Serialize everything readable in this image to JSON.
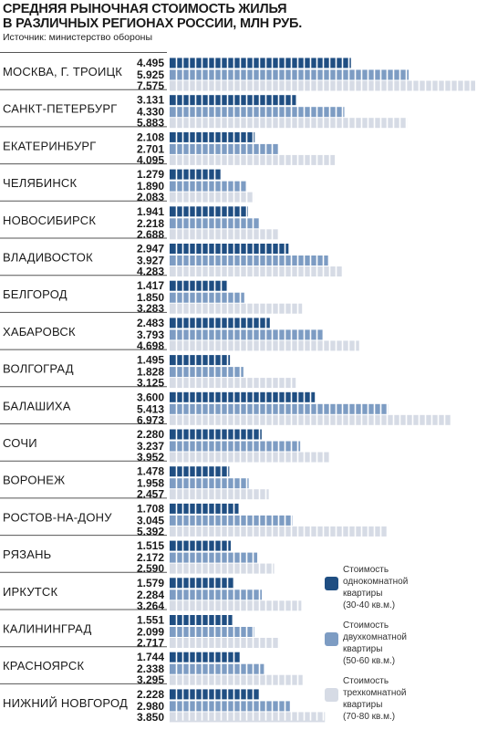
{
  "title_lines": [
    "СРЕДНЯЯ РЫНОЧНАЯ СТОИМОСТЬ ЖИЛЬЯ",
    "В РАЗЛИЧНЫХ РЕГИОНАХ РОССИИ, МЛН РУБ."
  ],
  "source": "Источник: министерство обороны",
  "colors": {
    "one_room": "#1f4e82",
    "two_room": "#7d9cc3",
    "three_room": "#d6dbe5"
  },
  "legend": [
    {
      "lines": [
        "Стоимость",
        "однокомнатной",
        "квартиры",
        "(30-40 кв.м.)"
      ]
    },
    {
      "lines": [
        "Стоимость",
        "двухкомнатной",
        "квартиры",
        "(50-60 кв.м.)"
      ]
    },
    {
      "lines": [
        "Стоимость",
        "трехкомнатной",
        "квартиры",
        "(70-80 кв.м.)"
      ]
    }
  ],
  "chart_data": {
    "type": "bar",
    "orientation": "horizontal",
    "title": "СРЕДНЯЯ РЫНОЧНАЯ СТОИМОСТЬ ЖИЛЬЯ В РАЗЛИЧНЫХ РЕГИОНАХ РОССИИ, МЛН РУБ.",
    "categories": [
      "МОСКВА, Г. ТРОИЦК",
      "САНКТ-ПЕТЕРБУРГ",
      "ЕКАТЕРИНБУРГ",
      "ЧЕЛЯБИНСК",
      "НОВОСИБИРСК",
      "ВЛАДИВОСТОК",
      "БЕЛГОРОД",
      "ХАБАРОВСК",
      "ВОЛГОГРАД",
      "БАЛАШИХА",
      "СОЧИ",
      "ВОРОНЕЖ",
      "РОСТОВ-НА-ДОНУ",
      "РЯЗАНЬ",
      "ИРКУТСК",
      "КАЛИНИНГРАД",
      "КРАСНОЯРСК",
      "НИЖНИЙ НОВГОРОД"
    ],
    "series": [
      {
        "name": "Стоимость однокомнатной квартиры (30-40 кв.м.)",
        "values": [
          4.495,
          3.131,
          2.108,
          1.279,
          1.941,
          2.947,
          1.417,
          2.483,
          1.495,
          3.6,
          2.28,
          1.478,
          1.708,
          1.515,
          1.579,
          1.551,
          1.744,
          2.228
        ]
      },
      {
        "name": "Стоимость двухкомнатной квартиры (50-60 кв.м.)",
        "values": [
          5.925,
          4.33,
          2.701,
          1.89,
          2.218,
          3.927,
          1.85,
          3.793,
          1.828,
          5.413,
          3.237,
          1.958,
          3.045,
          2.172,
          2.284,
          2.099,
          2.338,
          2.98
        ]
      },
      {
        "name": "Стоимость трехкомнатной квартиры (70-80 кв.м.)",
        "values": [
          7.575,
          5.883,
          4.095,
          2.083,
          2.688,
          4.283,
          3.283,
          4.698,
          3.125,
          6.973,
          3.952,
          2.457,
          5.392,
          2.59,
          3.264,
          2.717,
          3.295,
          3.85
        ]
      }
    ],
    "value_labels": [
      [
        "4.495",
        "5.925",
        "7.575"
      ],
      [
        "3.131",
        "4.330",
        "5.883"
      ],
      [
        "2.108",
        "2.701",
        "4.095"
      ],
      [
        "1.279",
        "1.890",
        "2.083"
      ],
      [
        "1.941",
        "2.218",
        "2.688"
      ],
      [
        "2.947",
        "3.927",
        "4.283"
      ],
      [
        "1.417",
        "1.850",
        "3.283"
      ],
      [
        "2.483",
        "3.793",
        "4.698"
      ],
      [
        "1.495",
        "1.828",
        "3.125"
      ],
      [
        "3.600",
        "5.413",
        "6.973"
      ],
      [
        "2.280",
        "3.237",
        "3.952"
      ],
      [
        "1.478",
        "1.958",
        "2.457"
      ],
      [
        "1.708",
        "3.045",
        "5.392"
      ],
      [
        "1.515",
        "2.172",
        "2.590"
      ],
      [
        "1.579",
        "2.284",
        "3.264"
      ],
      [
        "1.551",
        "2.099",
        "2.717"
      ],
      [
        "1.744",
        "2.338",
        "3.295"
      ],
      [
        "2.228",
        "2.980",
        "3.850"
      ]
    ],
    "legend_position": "right",
    "grid": false
  }
}
